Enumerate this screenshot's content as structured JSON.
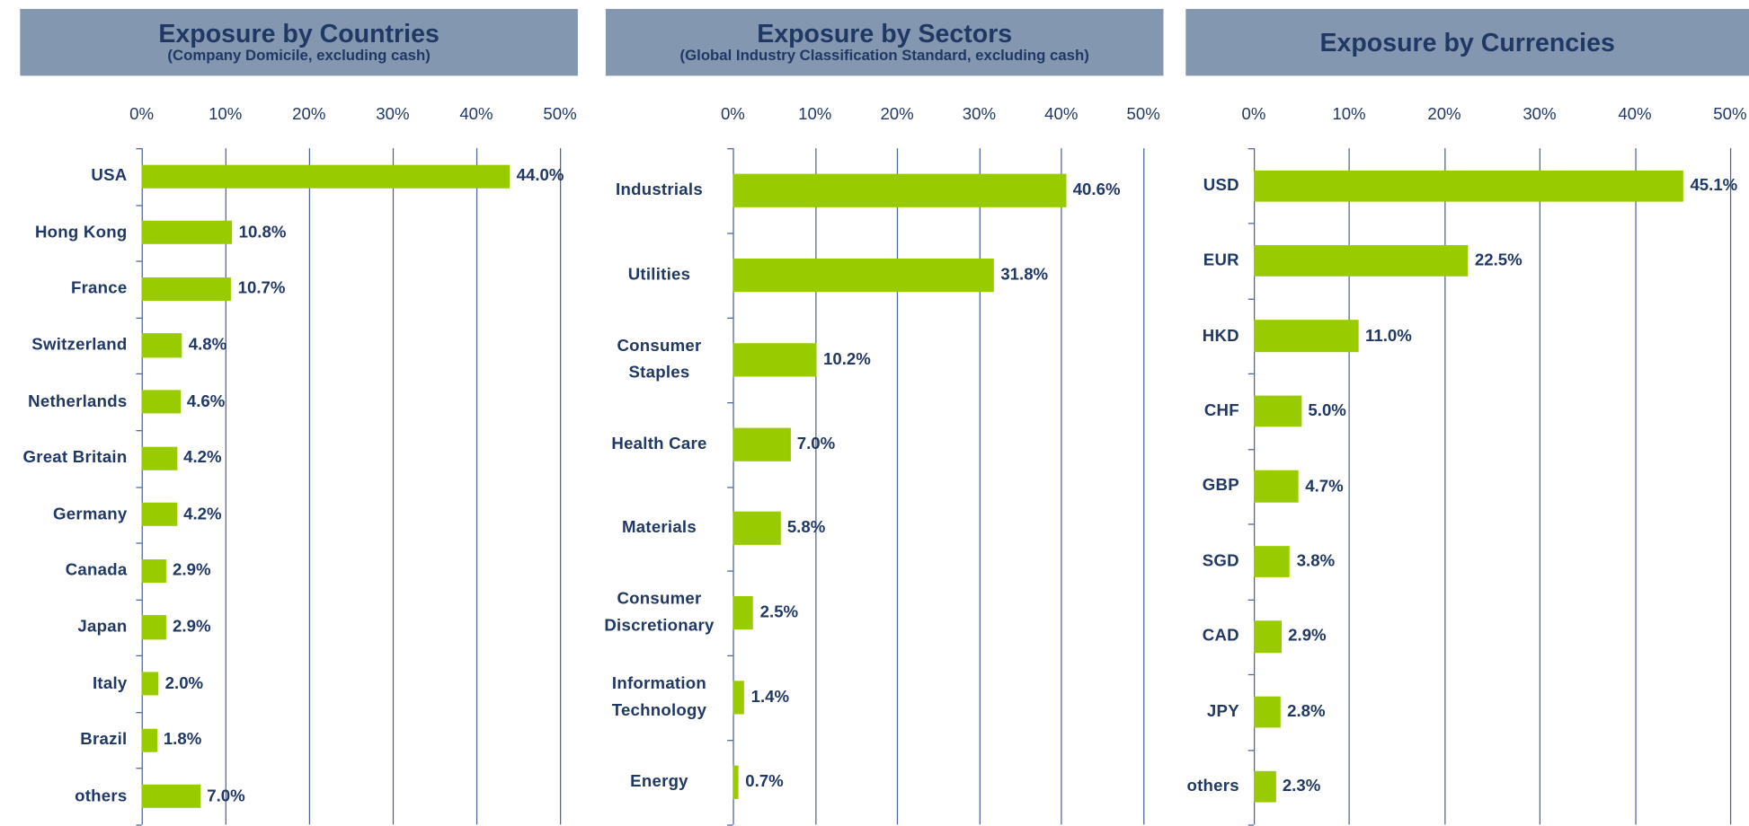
{
  "chart_data": [
    {
      "type": "bar",
      "orientation": "horizontal",
      "title": "Exposure by Countries",
      "subtitle": "(Company Domicile, excluding cash)",
      "categories": [
        "USA",
        "Hong Kong",
        "France",
        "Switzerland",
        "Netherlands",
        "Great Britain",
        "Germany",
        "Canada",
        "Japan",
        "Italy",
        "Brazil",
        "others"
      ],
      "values": [
        44.0,
        10.8,
        10.7,
        4.8,
        4.6,
        4.2,
        4.2,
        2.9,
        2.9,
        2.0,
        1.8,
        7.0
      ],
      "value_labels": [
        "44.0%",
        "10.8%",
        "10.7%",
        "4.8%",
        "4.6%",
        "4.2%",
        "4.2%",
        "2.9%",
        "2.9%",
        "2.0%",
        "1.8%",
        "7.0%"
      ],
      "color": "#99cc00",
      "xlim": [
        0,
        50
      ],
      "xticks": [
        {
          "value": 0,
          "label": "0%"
        },
        {
          "value": 10,
          "label": "10%"
        },
        {
          "value": 20,
          "label": "20%"
        },
        {
          "value": 30,
          "label": "30%"
        },
        {
          "value": 40,
          "label": "40%"
        },
        {
          "value": 50,
          "label": "50%"
        }
      ],
      "grid": true
    },
    {
      "type": "bar",
      "orientation": "horizontal",
      "title": "Exposure by Sectors",
      "subtitle": "(Global Industry Classification Standard, excluding cash)",
      "categories": [
        "Industrials",
        "Utilities",
        "Consumer Staples",
        "Health Care",
        "Materials",
        "Consumer Discretionary",
        "Information Technology",
        "Energy"
      ],
      "values": [
        40.6,
        31.8,
        10.2,
        7.0,
        5.8,
        2.5,
        1.4,
        0.7
      ],
      "value_labels": [
        "40.6%",
        "31.8%",
        "10.2%",
        "7.0%",
        "5.8%",
        "2.5%",
        "1.4%",
        "0.7%"
      ],
      "color": "#99cc00",
      "xlim": [
        0,
        50
      ],
      "xticks": [
        {
          "value": 0,
          "label": "0%"
        },
        {
          "value": 10,
          "label": "10%"
        },
        {
          "value": 20,
          "label": "20%"
        },
        {
          "value": 30,
          "label": "30%"
        },
        {
          "value": 40,
          "label": "40%"
        },
        {
          "value": 50,
          "label": "50%"
        }
      ],
      "grid": true
    },
    {
      "type": "bar",
      "orientation": "horizontal",
      "title": "Exposure by Currencies",
      "categories": [
        "USD",
        "EUR",
        "HKD",
        "CHF",
        "GBP",
        "SGD",
        "CAD",
        "JPY",
        "others"
      ],
      "values": [
        45.1,
        22.5,
        11.0,
        5.0,
        4.7,
        3.8,
        2.9,
        2.8,
        2.3
      ],
      "value_labels": [
        "45.1%",
        "22.5%",
        "11.0%",
        "5.0%",
        "4.7%",
        "3.8%",
        "2.9%",
        "2.8%",
        "2.3%"
      ],
      "color": "#99cc00",
      "xlim": [
        0,
        50
      ],
      "xticks": [
        {
          "value": 0,
          "label": "0%"
        },
        {
          "value": 10,
          "label": "10%"
        },
        {
          "value": 20,
          "label": "20%"
        },
        {
          "value": 30,
          "label": "30%"
        },
        {
          "value": 40,
          "label": "40%"
        },
        {
          "value": 50,
          "label": "50%"
        }
      ],
      "grid": true
    }
  ]
}
